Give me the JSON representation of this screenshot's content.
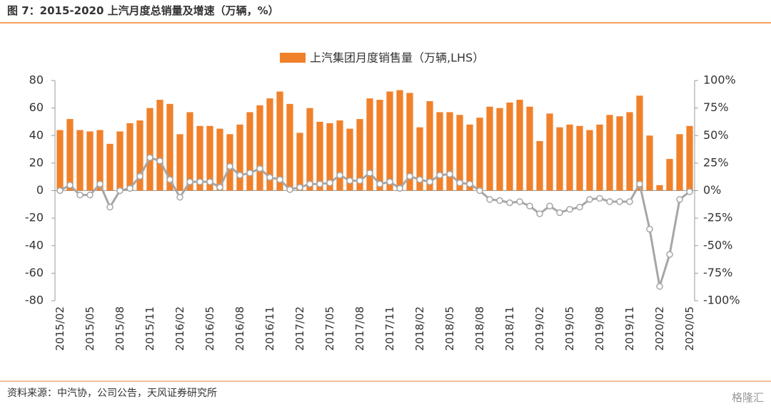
{
  "chart_data": {
    "type": "bar",
    "title": "图 7：2015-2020 上汽月度总销量及增速（万辆，%）",
    "source": "资料来源：中汽协，公司公告，天风证券研究所",
    "watermark": "格隆汇",
    "categories": [
      "2015/02",
      null,
      null,
      "2015/05",
      null,
      null,
      "2015/08",
      null,
      null,
      "2015/11",
      null,
      null,
      "2016/02",
      null,
      null,
      "2016/05",
      null,
      null,
      "2016/08",
      null,
      null,
      "2016/11",
      null,
      null,
      "2017/02",
      null,
      null,
      "2017/05",
      null,
      null,
      "2017/08",
      null,
      null,
      "2017/11",
      null,
      null,
      "2018/02",
      null,
      null,
      "2018/05",
      null,
      null,
      "2018/08",
      null,
      null,
      "2018/11",
      null,
      null,
      "2019/02",
      null,
      null,
      "2019/05",
      null,
      null,
      "2019/08",
      null,
      null,
      "2019/11",
      null,
      null,
      "2020/02",
      null,
      null,
      "2020/05"
    ],
    "series": [
      {
        "name": "上汽集团月度销售量（万辆,LHS）",
        "type": "bar",
        "color": "#f0812b",
        "values": [
          44,
          52,
          44,
          43,
          44,
          34,
          43,
          49,
          51,
          60,
          66,
          63,
          41,
          57,
          47,
          47,
          45,
          41,
          48,
          57,
          62,
          67,
          72,
          63,
          42,
          60,
          50,
          49,
          51,
          45,
          52,
          67,
          66,
          72,
          73,
          71,
          46,
          65,
          57,
          57,
          55,
          48,
          53,
          61,
          60,
          64,
          66,
          61,
          36,
          56,
          46,
          48,
          47,
          44,
          48,
          55,
          54,
          57,
          69,
          40,
          4,
          23,
          41,
          47
        ]
      },
      {
        "type": "line",
        "axis": "y2",
        "color": "#a6a6a6",
        "values": [
          0,
          5,
          -4,
          -4,
          6,
          -15,
          0,
          2,
          13,
          30,
          27,
          10,
          -6,
          8,
          8,
          8,
          3,
          22,
          14,
          16,
          20,
          12,
          10,
          1,
          3,
          6,
          6,
          7,
          14,
          9,
          9,
          16,
          6,
          8,
          2,
          13,
          10,
          8,
          14,
          15,
          7,
          6,
          0,
          -8,
          -9,
          -11,
          -10,
          -14,
          -21,
          -14,
          -20,
          -17,
          -15,
          -8,
          -7,
          -10,
          -10,
          -10,
          6,
          -35,
          -87,
          -58,
          -8,
          -1
        ]
      }
    ],
    "ylim": [
      -80,
      80
    ],
    "yticks": [
      -80,
      -60,
      -40,
      -20,
      0,
      20,
      40,
      60,
      80
    ],
    "y2lim": [
      -100,
      100
    ],
    "y2ticks": [
      {
        "value": -100,
        "label": "-100%"
      },
      {
        "value": -75,
        "label": "-75%"
      },
      {
        "value": -50,
        "label": "-50%"
      },
      {
        "value": -25,
        "label": "-25%"
      },
      {
        "value": 0,
        "label": "0%"
      },
      {
        "value": 25,
        "label": "25%"
      },
      {
        "value": 50,
        "label": "50%"
      },
      {
        "value": 75,
        "label": "75%"
      },
      {
        "value": 100,
        "label": "100%"
      }
    ]
  }
}
